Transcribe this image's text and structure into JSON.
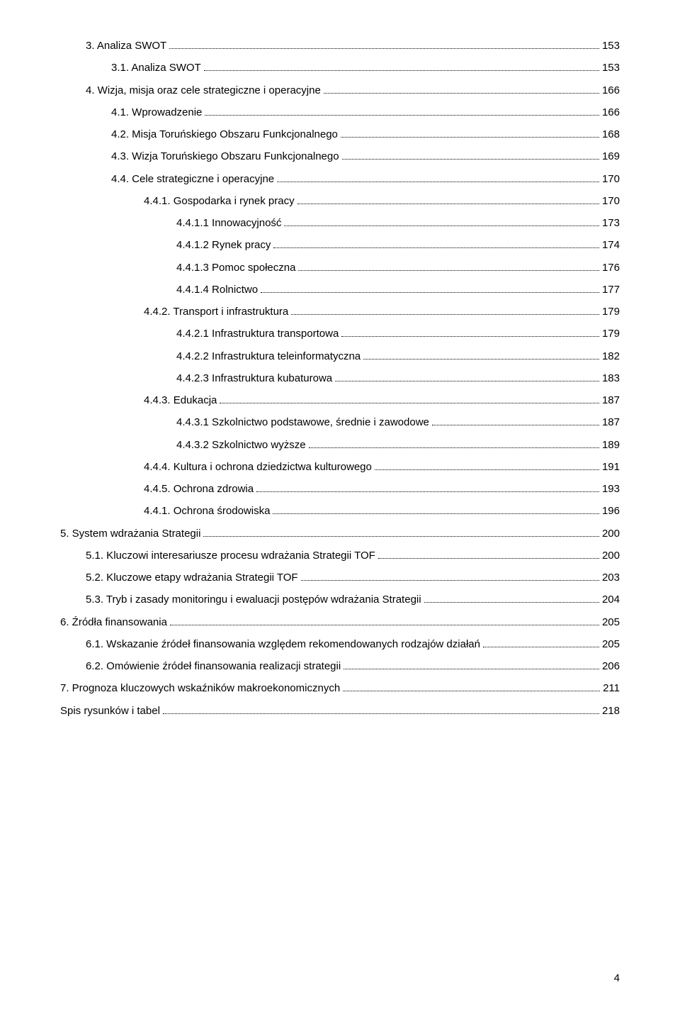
{
  "page_number": "4",
  "toc": [
    {
      "indent": 1,
      "label": "3.    Analiza SWOT",
      "page": "153"
    },
    {
      "indent": 2,
      "label": "3.1.    Analiza SWOT",
      "page": "153"
    },
    {
      "indent": 1,
      "label": "4.    Wizja, misja oraz cele strategiczne i operacyjne",
      "page": "166"
    },
    {
      "indent": 2,
      "label": "4.1.    Wprowadzenie",
      "page": "166"
    },
    {
      "indent": 2,
      "label": "4.2.    Misja Toruńskiego Obszaru Funkcjonalnego",
      "page": "168"
    },
    {
      "indent": 2,
      "label": "4.3.    Wizja Toruńskiego Obszaru Funkcjonalnego",
      "page": "169"
    },
    {
      "indent": 2,
      "label": "4.4.    Cele strategiczne i operacyjne",
      "page": "170"
    },
    {
      "indent": 3,
      "label": "4.4.1.    Gospodarka i rynek pracy",
      "page": "170"
    },
    {
      "indent": 4,
      "label": "4.4.1.1    Innowacyjność",
      "page": "173"
    },
    {
      "indent": 4,
      "label": "4.4.1.2    Rynek pracy",
      "page": "174"
    },
    {
      "indent": 4,
      "label": "4.4.1.3    Pomoc społeczna",
      "page": "176"
    },
    {
      "indent": 4,
      "label": "4.4.1.4    Rolnictwo",
      "page": "177"
    },
    {
      "indent": 3,
      "label": "4.4.2.    Transport i infrastruktura",
      "page": "179"
    },
    {
      "indent": 4,
      "label": "4.4.2.1    Infrastruktura transportowa",
      "page": "179"
    },
    {
      "indent": 4,
      "label": "4.4.2.2    Infrastruktura teleinformatyczna",
      "page": "182"
    },
    {
      "indent": 4,
      "label": "4.4.2.3    Infrastruktura kubaturowa",
      "page": "183"
    },
    {
      "indent": 3,
      "label": "4.4.3.    Edukacja",
      "page": "187"
    },
    {
      "indent": 4,
      "label": "4.4.3.1    Szkolnictwo podstawowe, średnie i zawodowe",
      "page": "187"
    },
    {
      "indent": 4,
      "label": "4.4.3.2    Szkolnictwo wyższe",
      "page": "189"
    },
    {
      "indent": 3,
      "label": "4.4.4.    Kultura i ochrona dziedzictwa kulturowego",
      "page": "191"
    },
    {
      "indent": 3,
      "label": "4.4.5.    Ochrona zdrowia",
      "page": "193"
    },
    {
      "indent": 3,
      "label": "4.4.1.    Ochrona środowiska",
      "page": "196"
    },
    {
      "indent": 0,
      "label": "5.    System wdrażania Strategii",
      "page": "200"
    },
    {
      "indent": 1,
      "label": "5.1.    Kluczowi interesariusze procesu wdrażania Strategii TOF",
      "page": "200"
    },
    {
      "indent": 1,
      "label": "5.2.    Kluczowe etapy wdrażania Strategii TOF",
      "page": "203"
    },
    {
      "indent": 1,
      "label": "5.3.    Tryb i zasady monitoringu i ewaluacji postępów wdrażania Strategii",
      "page": "204"
    },
    {
      "indent": 0,
      "label": "6.    Źródła finansowania",
      "page": "205"
    },
    {
      "indent": 1,
      "label": "6.1.    Wskazanie źródeł finansowania względem rekomendowanych rodzajów działań",
      "page": "205"
    },
    {
      "indent": 1,
      "label": "6.2.    Omówienie źródeł finansowania realizacji strategii",
      "page": "206"
    },
    {
      "indent": 0,
      "label": "7.    Prognoza kluczowych wskaźników makroekonomicznych",
      "page": "211"
    },
    {
      "indent": 0,
      "label": "Spis rysunków i tabel",
      "page": "218"
    }
  ]
}
